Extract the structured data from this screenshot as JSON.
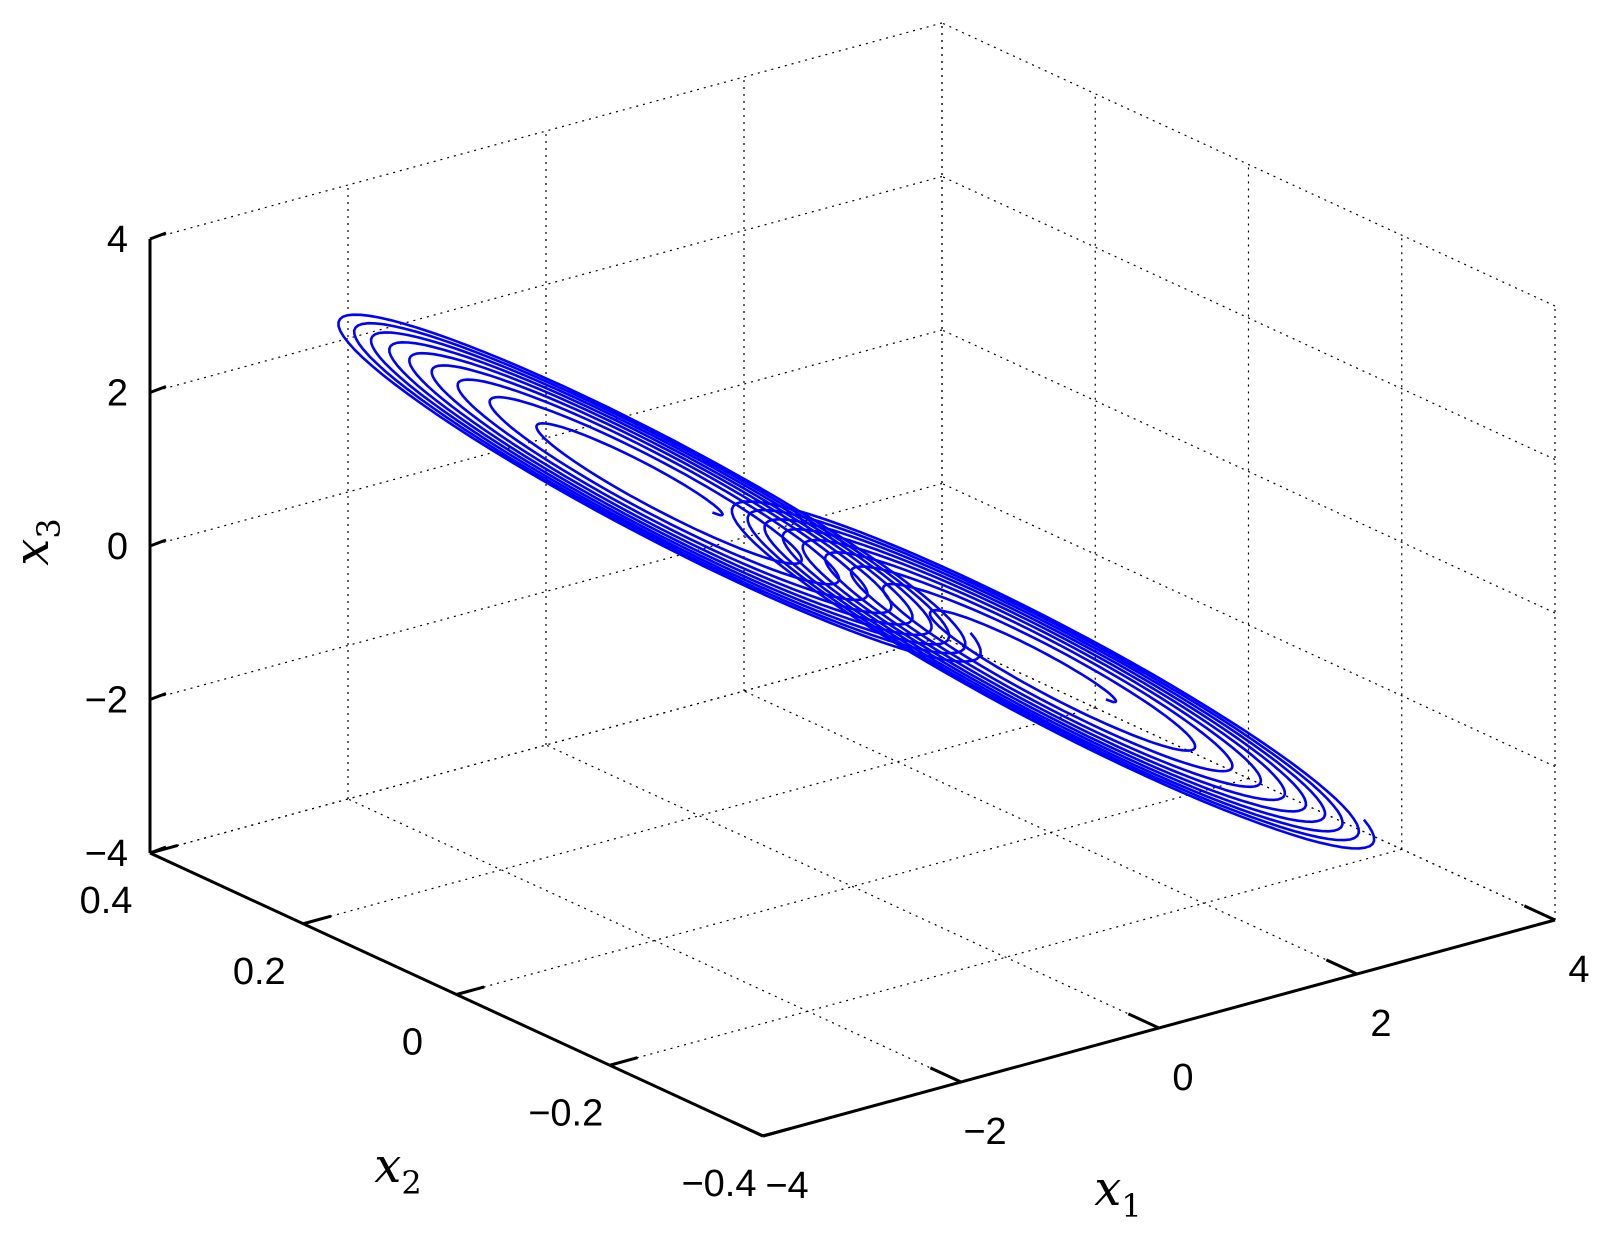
{
  "chart_data": {
    "type": "line",
    "projection": "3d",
    "title": "",
    "xlabel": "x",
    "xlabel_sub": "1",
    "ylabel": "x",
    "ylabel_sub": "2",
    "zlabel": "x",
    "zlabel_sub": "3",
    "xlim": [
      -4,
      4
    ],
    "ylim": [
      -0.4,
      0.4
    ],
    "zlim": [
      -4,
      4
    ],
    "xticks": [
      "−4",
      "−2",
      "0",
      "2",
      "4"
    ],
    "xtick_values": [
      -4,
      -2,
      0,
      2,
      4
    ],
    "yticks": [
      "−0.4",
      "−0.2",
      "0",
      "0.2",
      "0.4"
    ],
    "ytick_values": [
      -0.4,
      -0.2,
      0,
      0.2,
      0.4
    ],
    "zticks": [
      "−4",
      "−2",
      "0",
      "2",
      "4"
    ],
    "ztick_values": [
      -4,
      -2,
      0,
      2,
      4
    ],
    "grid": true,
    "series": [
      {
        "color": "#0000ff",
        "lobes": [
          {
            "center": [
              -1.6,
              0.05,
              1.55
            ],
            "axis_major": [
              2.25,
              -0.12,
              -2.15
            ],
            "axis_minor": [
              0.55,
              0.18,
              0.25
            ],
            "radius_start": 0.18,
            "radius_end": 1.0,
            "turns": 9
          },
          {
            "center": [
              1.6,
              -0.05,
              -1.55
            ],
            "axis_major": [
              2.25,
              -0.12,
              -2.15
            ],
            "axis_minor": [
              0.55,
              0.18,
              0.25
            ],
            "radius_start": 0.18,
            "radius_end": 1.0,
            "turns": 9
          }
        ]
      }
    ]
  }
}
